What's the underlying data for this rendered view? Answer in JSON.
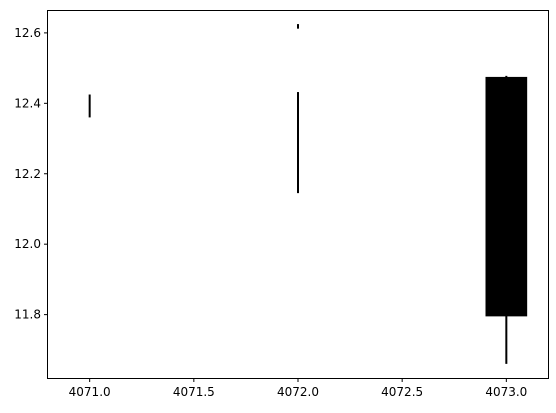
{
  "chart_data": {
    "type": "candlestick",
    "title": "",
    "xlabel": "",
    "ylabel": "",
    "xlim": [
      4070.8,
      4073.2
    ],
    "ylim": [
      11.62,
      12.665
    ],
    "grid": false,
    "legend": "none",
    "x_ticks": [
      4071.0,
      4071.5,
      4072.0,
      4072.5,
      4073.0
    ],
    "x_tick_labels": [
      "4071.0",
      "4071.5",
      "4072.0",
      "4072.5",
      "4073.0"
    ],
    "y_ticks": [
      11.8,
      12.0,
      12.2,
      12.4,
      12.6
    ],
    "y_tick_labels": [
      "11.8",
      "12.0",
      "12.2",
      "12.4",
      "12.6"
    ],
    "colors": {
      "candle": "#000000",
      "axes": "#000000",
      "background": "#ffffff"
    },
    "body_width": 0.2,
    "candles": [
      {
        "x": 4071.0,
        "low": 12.36,
        "high": 12.425,
        "open": 12.36,
        "close": 12.425
      },
      {
        "x": 4072.0,
        "low": 12.145,
        "high": 12.625,
        "segments": [
          [
            12.145,
            12.432
          ],
          [
            12.612,
            12.625
          ]
        ]
      },
      {
        "x": 4073.0,
        "low": 11.66,
        "high": 12.478,
        "open": 11.795,
        "close": 12.475
      }
    ]
  }
}
